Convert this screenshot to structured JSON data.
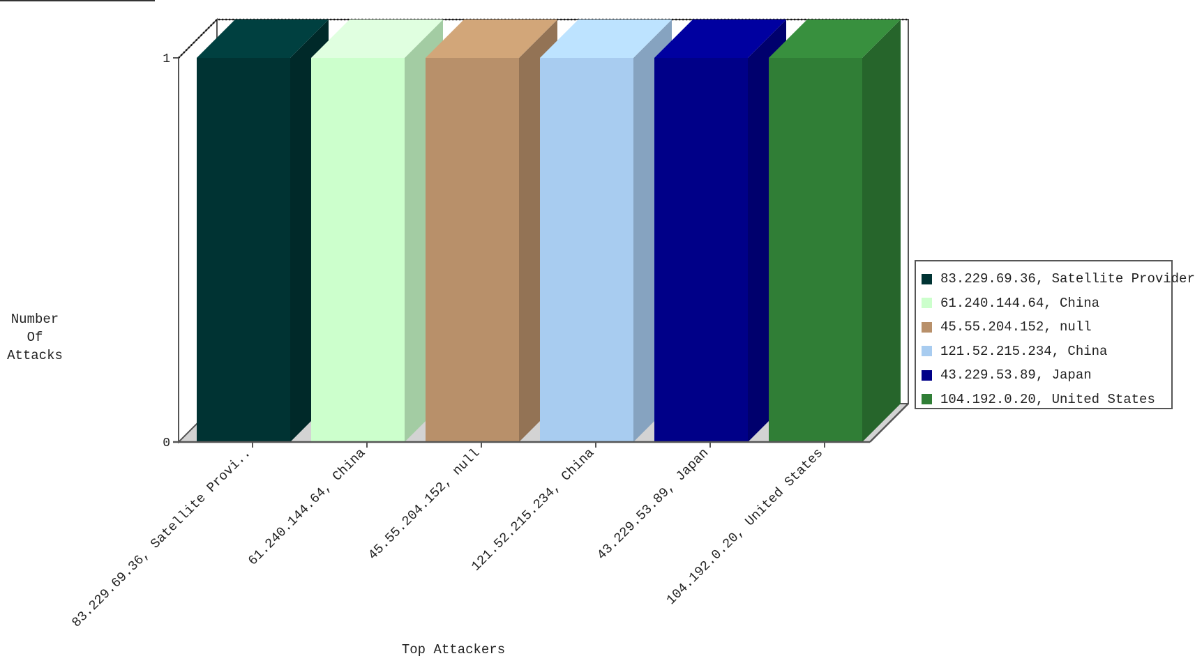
{
  "chart_data": {
    "type": "bar",
    "categories": [
      "83.229.69.36, Satellite Provi..",
      "61.240.144.64, China",
      "45.55.204.152, null",
      "121.52.215.234, China",
      "43.229.53.89, Japan",
      "104.192.0.20, United States"
    ],
    "values": [
      1,
      1,
      1,
      1,
      1,
      1
    ],
    "colors": [
      "#003333",
      "#ccffcc",
      "#b8906a",
      "#a8ccf0",
      "#000088",
      "#307e36"
    ],
    "side_colors": [
      "#002929",
      "#a3cca3",
      "#937355",
      "#86a3c0",
      "#00006d",
      "#26652b"
    ],
    "top_colors": [
      "#004040",
      "#e0ffe0",
      "#d2a679",
      "#bde3ff",
      "#0000a0",
      "#38903e"
    ],
    "legend": [
      "83.229.69.36, Satellite Provider",
      "61.240.144.64, China",
      "45.55.204.152, null",
      "121.52.215.234, China",
      "43.229.53.89, Japan",
      "104.192.0.20, United States"
    ],
    "xlabel": "Top Attackers",
    "ylabel": "Number Of Attacks",
    "ylabel_lines": [
      "Number",
      "Of",
      "Attacks"
    ],
    "ylim": [
      0,
      1
    ],
    "yticks": [
      0,
      1
    ],
    "grid": false,
    "style": "3d",
    "legend_position": "right"
  }
}
